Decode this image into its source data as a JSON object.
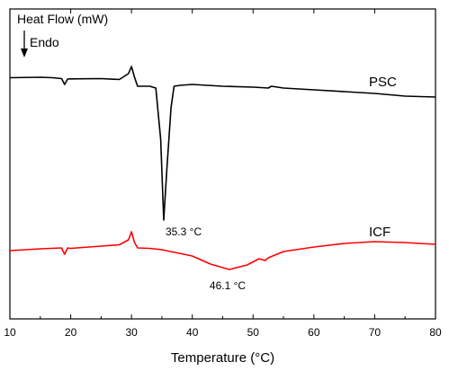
{
  "chart_data": {
    "type": "line",
    "ylabel": "Heat Flow (mW)",
    "ylabel_direction": "Endo",
    "xlabel": "Temperature (°C)",
    "xlim": [
      10,
      80
    ],
    "xticks": [
      "10",
      "20",
      "30",
      "40",
      "50",
      "60",
      "70",
      "80"
    ],
    "ytick_labels": false,
    "grid": false,
    "series": [
      {
        "name": "PSC",
        "color": "#000000",
        "x": [
          10,
          15,
          17,
          18.5,
          19,
          19.5,
          20,
          25,
          28,
          29.5,
          30,
          30.5,
          31,
          32,
          33,
          34,
          34.8,
          35.3,
          35.8,
          36.5,
          37,
          38,
          40,
          45,
          50,
          52.5,
          53,
          55,
          60,
          65,
          70,
          75,
          80
        ],
        "y": [
          86.5,
          86.0,
          86.5,
          87.5,
          94.0,
          88.0,
          87.8,
          87.5,
          88.5,
          82.0,
          74.0,
          86.0,
          96.0,
          96.0,
          96.0,
          98.0,
          155.0,
          245.0,
          190.0,
          120.0,
          96.0,
          95.0,
          94.0,
          96.0,
          97.0,
          98.0,
          96.0,
          98.0,
          100.0,
          102.0,
          104.0,
          107.0,
          108.0
        ]
      },
      {
        "name": "ICF",
        "color": "#ff0000",
        "x": [
          10,
          15,
          18.5,
          19,
          19.5,
          20,
          25,
          28,
          29.5,
          30,
          30.5,
          31,
          33,
          35,
          40,
          43,
          46.1,
          49,
          51,
          52,
          52.5,
          55,
          60,
          65,
          70,
          75,
          80
        ],
        "y": [
          279.0,
          277.0,
          276.0,
          283.0,
          276.0,
          276.5,
          274.0,
          272.5,
          267.0,
          258.0,
          270.0,
          276.0,
          276.5,
          278.0,
          285.0,
          294.0,
          300.0,
          295.0,
          288.0,
          290.0,
          287.0,
          280.0,
          275.0,
          271.0,
          269.0,
          270.0,
          272.0
        ]
      }
    ],
    "annotations": [
      {
        "text": "35.3 °C",
        "x": 35.3,
        "series": "PSC"
      },
      {
        "text": "46.1 °C",
        "x": 46.1,
        "series": "ICF"
      }
    ],
    "legend_labels": [
      "PSC",
      "ICF"
    ]
  }
}
